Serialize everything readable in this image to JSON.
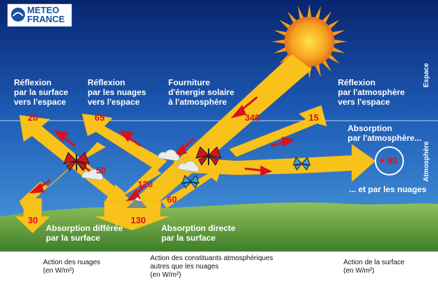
{
  "logo": {
    "text": "METEO\nFRANCE"
  },
  "zones": {
    "space": "Espace",
    "atmosphere": "Atmosphère"
  },
  "labels": {
    "surface_reflection": "Réflexion\npar la surface\nvers l'espace",
    "cloud_reflection": "Réflexion\npar les nuages\nvers l'espace",
    "solar_supply": "Fourniture\nd'énergie solaire\nà l'atmosphère",
    "atmo_reflection": "Réflexion\npar l'atmosphère\nvers l'espace",
    "atmo_absorption": "Absorption\npar l'atmosphère...",
    "cloud_absorption": "... et par les nuages",
    "delayed_absorption": "Absorption différée\npar la surface",
    "direct_absorption": "Absorption directe\npar la surface"
  },
  "values": {
    "v20": "20",
    "v65": "65",
    "v340": "340",
    "v15": "15",
    "v50": "50",
    "v120": "120",
    "v60": "60",
    "v30": "30",
    "v130": "130",
    "v80": "+ 80"
  },
  "legend": {
    "clouds": "Action des nuages\n(en W/m²)",
    "constituents": "Action des constituants atmosphériques\nautres que les nuages\n(en W/m²)",
    "surface": "Action de la surface\n(en W/m²)"
  },
  "colors": {
    "sky_top": "#0b2f86",
    "sky_low": "#3d8fd6",
    "arrow": "#f8c21a",
    "value_red": "#d8121c",
    "sun": "#f3901c",
    "ground": "#5c9b3a"
  }
}
